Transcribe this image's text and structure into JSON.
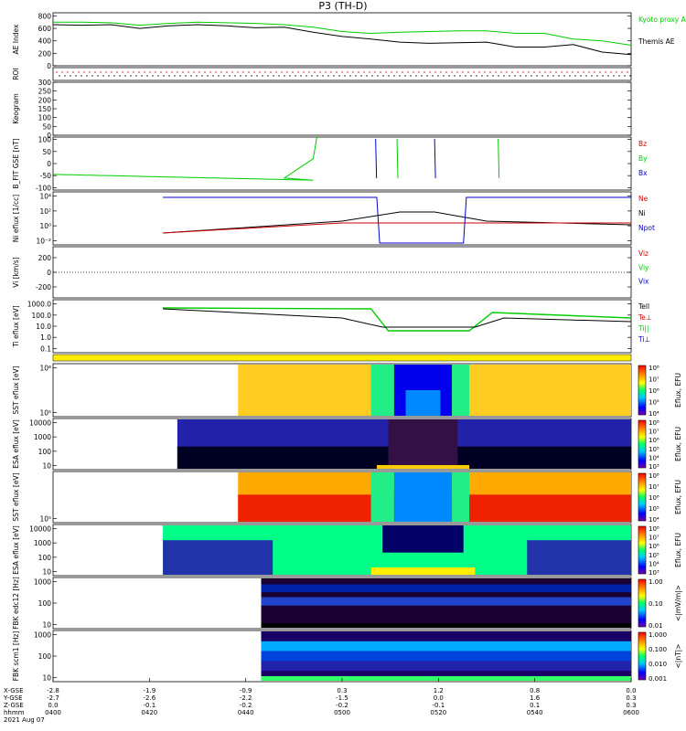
{
  "title": "P3 (TH-D)",
  "colors": {
    "black": "#000000",
    "green": "#00cc00",
    "blue": "#0000cc",
    "red": "#cc0000",
    "panel_bg": "#ffffff",
    "frame": "#000000"
  },
  "chart_data": [
    {
      "type": "line",
      "id": "ae",
      "ylabel": "AE Index",
      "yticks": [
        "0",
        "200",
        "400",
        "600",
        "800"
      ],
      "ylim": [
        0,
        850
      ],
      "legend": [
        {
          "name": "Kyoto proxy AE",
          "color": "#00cc00"
        },
        {
          "name": "Themis AE",
          "color": "#000000"
        }
      ],
      "series": [
        {
          "name": "Kyoto",
          "color": "#00cc00",
          "x": [
            0,
            0.05,
            0.1,
            0.15,
            0.2,
            0.25,
            0.3,
            0.35,
            0.4,
            0.45,
            0.5,
            0.55,
            0.6,
            0.65,
            0.7,
            0.75,
            0.8,
            0.85,
            0.9,
            0.95,
            1.0
          ],
          "y": [
            700,
            700,
            690,
            650,
            680,
            700,
            690,
            680,
            660,
            620,
            550,
            520,
            540,
            550,
            560,
            560,
            520,
            520,
            430,
            400,
            330
          ]
        },
        {
          "name": "Themis",
          "color": "#000000",
          "x": [
            0,
            0.05,
            0.1,
            0.15,
            0.2,
            0.25,
            0.3,
            0.35,
            0.4,
            0.45,
            0.5,
            0.55,
            0.6,
            0.65,
            0.7,
            0.75,
            0.8,
            0.85,
            0.9,
            0.95,
            1.0
          ],
          "y": [
            660,
            650,
            660,
            600,
            640,
            660,
            640,
            610,
            620,
            540,
            470,
            430,
            380,
            360,
            370,
            380,
            300,
            300,
            340,
            220,
            180
          ]
        }
      ]
    },
    {
      "type": "dots",
      "id": "roi",
      "ylabel": "ROI"
    },
    {
      "type": "line",
      "id": "keogram",
      "ylabel": "Keogram",
      "yticks": [
        "0",
        "50",
        "100",
        "150",
        "200",
        "250",
        "300"
      ],
      "ylim": [
        0,
        300
      ]
    },
    {
      "type": "line",
      "id": "bfit",
      "ylabel": "B_FIT GSE [nT]",
      "yticks": [
        "-100",
        "-50",
        "0",
        "50",
        "100"
      ],
      "ylim": [
        -110,
        110
      ],
      "legend": [
        {
          "name": "Bz",
          "color": "#cc0000"
        },
        {
          "name": "By",
          "color": "#00cc00"
        },
        {
          "name": "Bx",
          "color": "#0000cc"
        }
      ]
    },
    {
      "type": "line",
      "id": "ni",
      "ylabel": "Ni eflux [1/cc]",
      "yticks": [
        "10⁻²",
        "10⁰",
        "10²",
        "10⁴"
      ],
      "legend": [
        {
          "name": "Ne",
          "color": "#cc0000"
        },
        {
          "name": "Ni",
          "color": "#000000"
        },
        {
          "name": "Npot",
          "color": "#0000cc"
        }
      ]
    },
    {
      "type": "line",
      "id": "vi",
      "ylabel": "Vi [km/s]",
      "yticks": [
        "-200",
        "0",
        "200"
      ],
      "ylim": [
        -350,
        350
      ],
      "legend": [
        {
          "name": "Viz",
          "color": "#cc0000"
        },
        {
          "name": "Viy",
          "color": "#00cc00"
        },
        {
          "name": "Vix",
          "color": "#0000cc"
        }
      ]
    },
    {
      "type": "line",
      "id": "ti",
      "ylabel": "Ti eflux [eV]",
      "yticks": [
        "0.1",
        "1.0",
        "10.0",
        "100.0",
        "1000.0"
      ],
      "legend": [
        {
          "name": "Tell",
          "color": "#000000"
        },
        {
          "name": "Te⊥",
          "color": "#cc0000"
        },
        {
          "name": "Ti||",
          "color": "#00cc00"
        },
        {
          "name": "Ti⊥",
          "color": "#0000cc"
        }
      ]
    },
    {
      "type": "heatmap",
      "id": "sst_e",
      "ylabel": "SST eflux [eV]",
      "yticks": [
        "10⁵",
        "10⁶"
      ],
      "cbar_label": "Eflux, EFU",
      "cbar_ticks": [
        "10⁴",
        "10⁵",
        "10⁶",
        "10⁷",
        "10⁸"
      ]
    },
    {
      "type": "heatmap",
      "id": "esa_e",
      "ylabel": "ESA eflux [eV]",
      "yticks": [
        "10",
        "100",
        "1000",
        "10000"
      ],
      "cbar_label": "Eflux, EFU",
      "cbar_ticks": [
        "10³",
        "10⁴",
        "10⁵",
        "10⁶",
        "10⁷",
        "10⁸"
      ]
    },
    {
      "type": "heatmap",
      "id": "sst_i",
      "ylabel": "SST eflux [eV]",
      "yticks": [
        "10⁵"
      ],
      "cbar_label": "Eflux, EFU",
      "cbar_ticks": [
        "10⁴",
        "10⁵",
        "10⁶",
        "10⁷",
        "10⁸"
      ]
    },
    {
      "type": "heatmap",
      "id": "esa_i",
      "ylabel": "ESA eflux [eV]",
      "yticks": [
        "10",
        "100",
        "1000",
        "10000"
      ],
      "cbar_label": "Eflux, EFU",
      "cbar_ticks": [
        "10³",
        "10⁴",
        "10⁵",
        "10⁶",
        "10⁷",
        "10⁸"
      ]
    },
    {
      "type": "heatmap",
      "id": "fbk_e",
      "ylabel": "FBK edc12 [Hz]",
      "yticks": [
        "10",
        "100",
        "1000"
      ],
      "cbar_label": "<|mV/m|>",
      "cbar_ticks": [
        "0.01",
        "0.10",
        "1.00"
      ]
    },
    {
      "type": "heatmap",
      "id": "fbk_b",
      "ylabel": "FBK scm1 [Hz]",
      "yticks": [
        "10",
        "100",
        "1000"
      ],
      "cbar_label": "<|nT|>",
      "cbar_ticks": [
        "0.001",
        "0.010",
        "0.100",
        "1.000"
      ]
    }
  ],
  "xaxis": {
    "row_labels": [
      "X-GSE",
      "Y-GSE",
      "Z-GSE",
      "hhmm",
      "2021 Aug 07"
    ],
    "columns": [
      [
        "-2.8",
        "-2.7",
        "0.0",
        "0400"
      ],
      [
        "-1.9",
        "-2.6",
        "-0.1",
        "0420"
      ],
      [
        "-0.9",
        "-2.2",
        "-0.2",
        "0440"
      ],
      [
        "0.3",
        "-1.5",
        "-0.2",
        "0500"
      ],
      [
        "1.2",
        "0.0",
        "-0.1",
        "0520"
      ],
      [
        "0.8",
        "1.6",
        "0.1",
        "0540"
      ],
      [
        "0.0",
        "0.3",
        "0.3",
        "0600"
      ]
    ]
  }
}
